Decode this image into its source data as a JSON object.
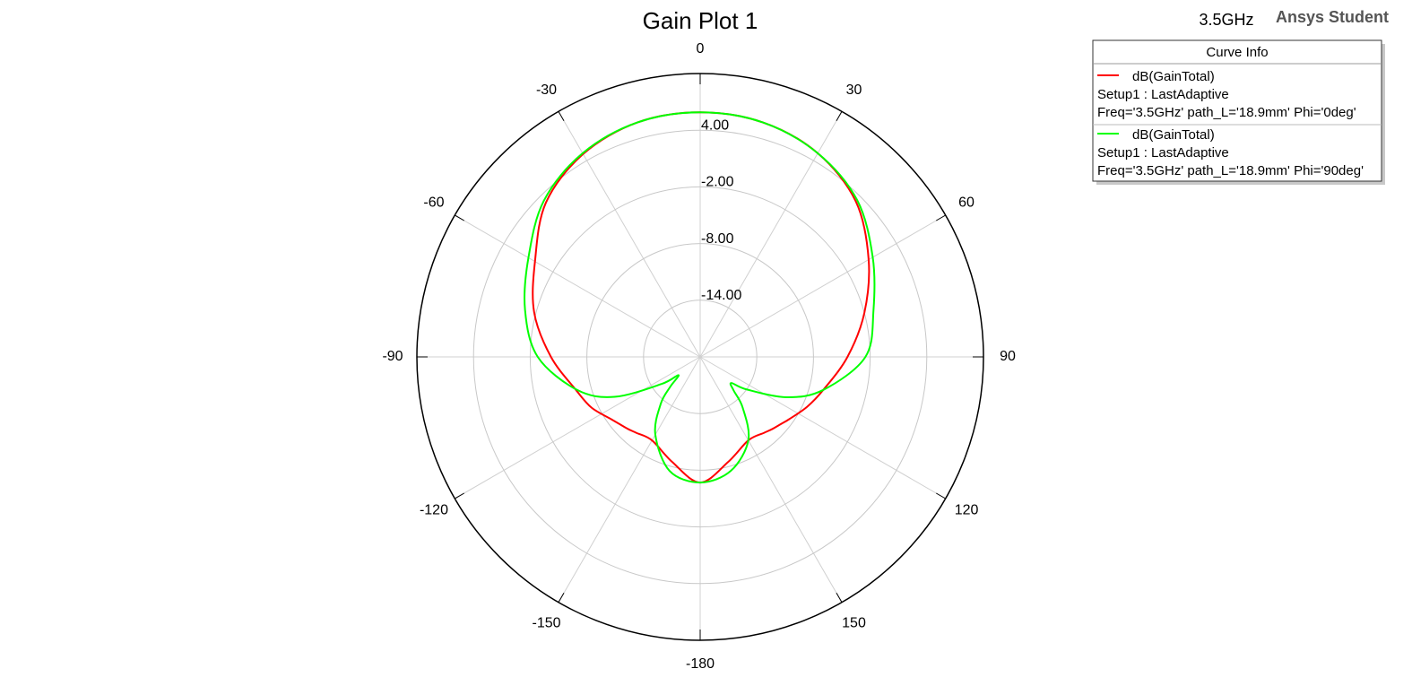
{
  "chart_data": {
    "type": "polar",
    "title": "Gain Plot 1",
    "frequency_label": "3.5GHz",
    "watermark": "Ansys Student",
    "legend_title": "Curve Info",
    "legend": "top-right",
    "grid": true,
    "theta_zero": "top",
    "theta_direction": "clockwise",
    "rlim": [
      -20,
      10
    ],
    "rticks": [
      {
        "value": -14,
        "label": "-14.00"
      },
      {
        "value": -8,
        "label": "-8.00"
      },
      {
        "value": -2,
        "label": "-2.00"
      },
      {
        "value": 4,
        "label": "4.00"
      }
    ],
    "thetaticks": [
      -180,
      -150,
      -120,
      -90,
      -60,
      -30,
      0,
      30,
      60,
      90,
      120,
      150
    ],
    "x": [
      -180,
      -165,
      -150,
      -140,
      -135,
      -130,
      -125,
      -115,
      -105,
      -90,
      -75,
      -60,
      -45,
      -30,
      -15,
      0,
      15,
      30,
      45,
      60,
      75,
      90,
      105,
      115,
      125,
      130,
      135,
      140,
      150,
      165
    ],
    "series": [
      {
        "name": "dB(GainTotal)",
        "setup": "Setup1 : LastAdaptive",
        "params": "Freq='3.5GHz' path_L='18.9mm' Phi='0deg'",
        "color": "#ff0000",
        "values": [
          -6.7,
          -8.5,
          -9.8,
          -9.5,
          -9.2,
          -8.9,
          -8.5,
          -7.3,
          -6.4,
          -4.2,
          -1.8,
          0.2,
          3.1,
          4.8,
          5.7,
          5.9,
          5.7,
          4.9,
          3.3,
          0.6,
          -2.0,
          -4.4,
          -6.5,
          -7.5,
          -8.5,
          -8.9,
          -9.2,
          -9.5,
          -9.8,
          -8.5
        ]
      },
      {
        "name": "dB(GainTotal)",
        "setup": "Setup1 : LastAdaptive",
        "params": "Freq='3.5GHz' path_L='18.9mm' Phi='90deg'",
        "color": "#00ff00",
        "values": [
          -6.7,
          -7.5,
          -10.5,
          -13.5,
          -15.5,
          -17,
          -15,
          -10,
          -6.5,
          -2.8,
          -0.8,
          1.0,
          3.4,
          4.9,
          5.7,
          5.9,
          5.7,
          4.9,
          3.5,
          1.1,
          -1.0,
          -2.5,
          -6.5,
          -9.9,
          -14,
          -15.7,
          -15,
          -13,
          -9.8,
          -7.5
        ]
      }
    ]
  }
}
